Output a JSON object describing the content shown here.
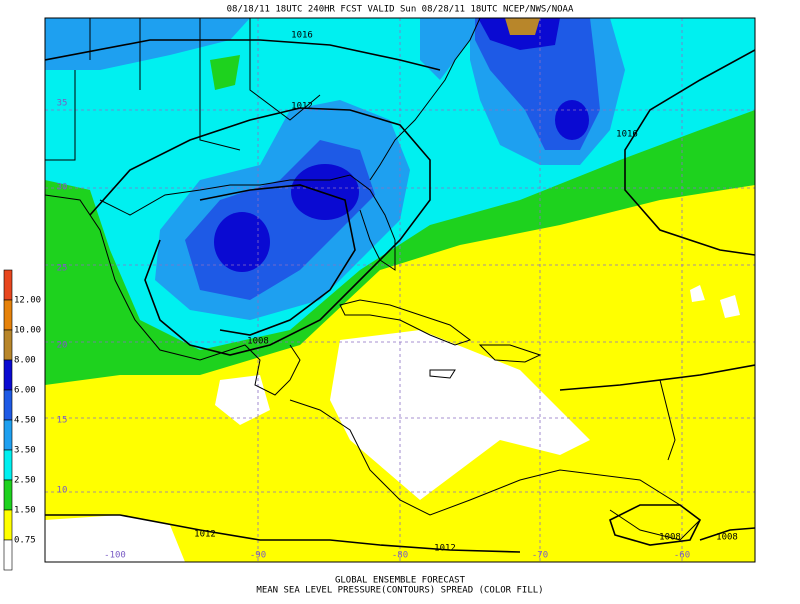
{
  "header": "08/18/11 18UTC  240HR  FCST VALID Sun 08/28/11 18UTC  NCEP/NWS/NOAA",
  "footer": [
    "GLOBAL ENSEMBLE FORECAST",
    "MEAN SEA LEVEL PRESSURE(CONTOURS) SPREAD (COLOR FILL)"
  ],
  "legend": {
    "colors": [
      "#e8461e",
      "#e6820a",
      "#b8862a",
      "#0a0ad2",
      "#1e5ae6",
      "#1ea0f0",
      "#00f0f0",
      "#1ed21e",
      "#ffff00",
      "#ffffff"
    ],
    "labels": [
      "12.00",
      "10.00",
      "8.00",
      "6.00",
      "4.50",
      "3.50",
      "2.50",
      "1.50",
      "0.75"
    ]
  },
  "latitude_labels": [
    "35",
    "30",
    "25",
    "20",
    "15",
    "10"
  ],
  "longitude_labels": [
    "-100",
    "-90",
    "-80",
    "-70",
    "-60"
  ],
  "contour_labels": [
    "1016",
    "1012",
    "1016",
    "1008",
    "1012",
    "1012",
    "1008",
    "1008"
  ]
}
